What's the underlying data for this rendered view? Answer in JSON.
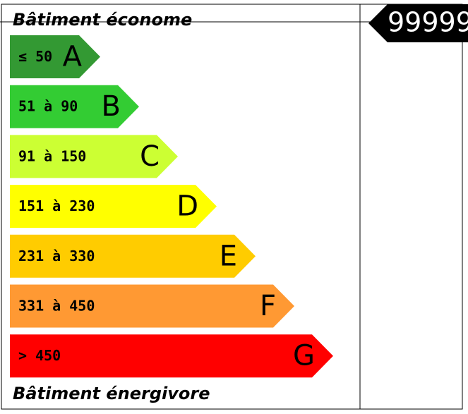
{
  "header": {
    "title": "Bâtiment économe"
  },
  "footer": {
    "title": "Bâtiment énergivore"
  },
  "marker": {
    "value": "99999"
  },
  "classes": [
    {
      "range": "≤ 50",
      "letter": "A",
      "color": "#339933"
    },
    {
      "range": "51 à 90",
      "letter": "B",
      "color": "#33cc33"
    },
    {
      "range": "91 à 150",
      "letter": "C",
      "color": "#ccff33"
    },
    {
      "range": "151 à 230",
      "letter": "D",
      "color": "#ffff00"
    },
    {
      "range": "231 à 330",
      "letter": "E",
      "color": "#ffcc00"
    },
    {
      "range": "331 à 450",
      "letter": "F",
      "color": "#ff9933"
    },
    {
      "range": "> 450",
      "letter": "G",
      "color": "#ff0000"
    }
  ]
}
